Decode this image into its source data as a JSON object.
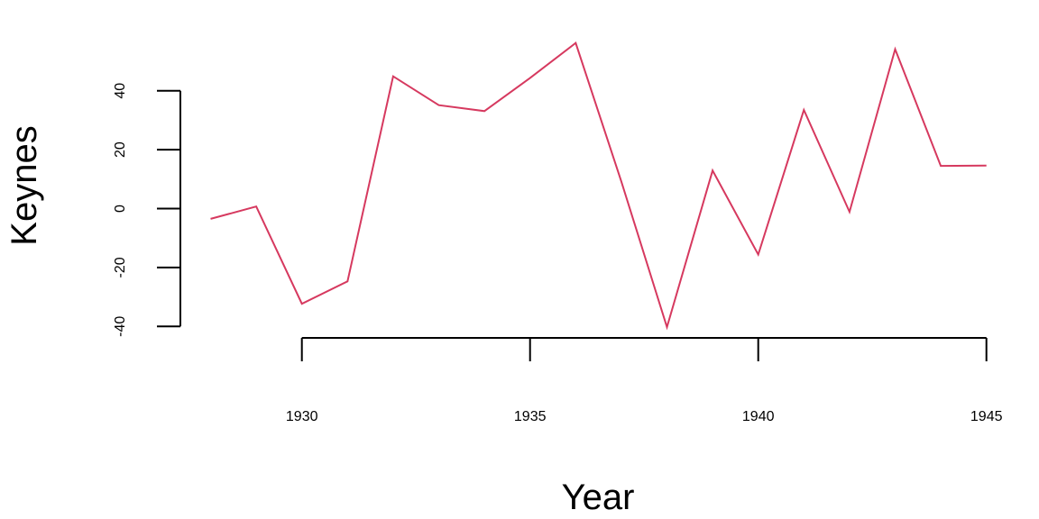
{
  "chart_data": {
    "type": "line",
    "title": "",
    "xlabel": "Year",
    "ylabel": "Keynes",
    "xlim": [
      1928,
      1945
    ],
    "ylim": [
      -40,
      40
    ],
    "x_ticks": [
      1930,
      1935,
      1940,
      1945
    ],
    "y_ticks": [
      -40,
      -20,
      0,
      20,
      40
    ],
    "grid": false,
    "series": [
      {
        "color": "#d6395f",
        "x": [
          1928,
          1929,
          1930,
          1931,
          1932,
          1933,
          1934,
          1935,
          1936,
          1937,
          1938,
          1939,
          1940,
          1941,
          1942,
          1943,
          1944,
          1945
        ],
        "values": [
          -3.5,
          0.7,
          -32.3,
          -24.7,
          44.9,
          35.1,
          33.1,
          44.3,
          56.2,
          9.2,
          -40.2,
          12.9,
          -15.6,
          33.5,
          -1.1,
          54.1,
          14.5,
          14.6
        ]
      }
    ]
  }
}
